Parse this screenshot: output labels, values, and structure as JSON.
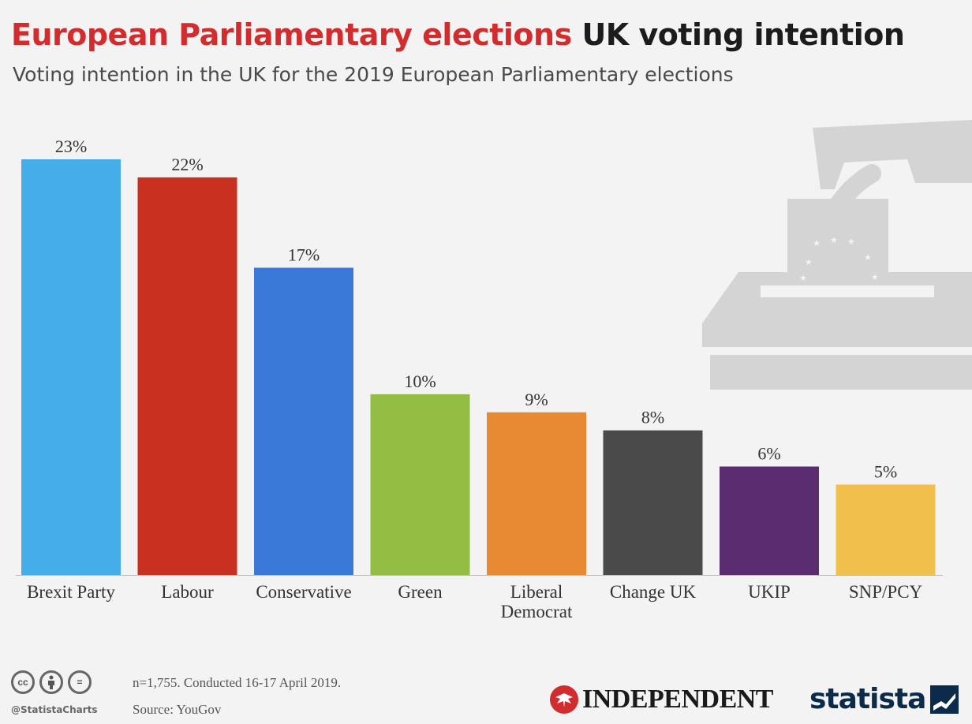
{
  "header": {
    "title_part1": "European Parliamentary elections",
    "title_part2": "UK voting intention",
    "subtitle": "Voting intention in the UK for the 2019 European Parliamentary elections"
  },
  "chart_data": {
    "type": "bar",
    "title": "European Parliamentary elections UK voting intention",
    "subtitle": "Voting intention in the UK for the 2019 European Parliamentary elections",
    "categories": [
      "Brexit Party",
      "Labour",
      "Conservative",
      "Green",
      "Liberal Democrat",
      "Change UK",
      "UKIP",
      "SNP/PCY"
    ],
    "values": [
      23,
      22,
      17,
      10,
      9,
      8,
      6,
      5
    ],
    "value_labels": [
      "23%",
      "22%",
      "17%",
      "10%",
      "9%",
      "8%",
      "6%",
      "5%"
    ],
    "colors": [
      "#45aee8",
      "#c8311f",
      "#3b79d8",
      "#93bd43",
      "#e88a33",
      "#4a4a4a",
      "#5a2d71",
      "#f1c04c"
    ],
    "unit": "%",
    "ylim": [
      0,
      23
    ],
    "grid": false,
    "legend": "none"
  },
  "footer": {
    "note": "n=1,755. Conducted 16-17 April 2019.",
    "source": "Source: YouGov",
    "handle": "@StatistaCharts",
    "independent_logo": "INDEPENDENT",
    "statista_logo": "statista"
  },
  "icons": {
    "license": [
      "cc",
      "by",
      "="
    ],
    "background": "ballot-box-illustration"
  }
}
